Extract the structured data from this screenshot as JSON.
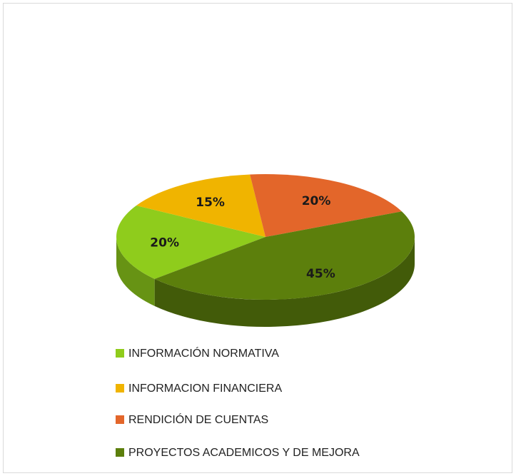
{
  "chart_data": {
    "type": "pie",
    "categories": [
      "INFORMACIÓN NORMATIVA",
      "INFORMACION FINANCIERA",
      "RENDICIÓN DE CUENTAS",
      "PROYECTOS ACADEMICOS Y DE MEJORA"
    ],
    "values": [
      20,
      15,
      20,
      45
    ],
    "value_labels": [
      "20%",
      "15%",
      "20%",
      "45%"
    ],
    "colors": [
      "#8fcc1c",
      "#f0b400",
      "#e3662a",
      "#5c7f0c"
    ],
    "legend": "bottom"
  }
}
